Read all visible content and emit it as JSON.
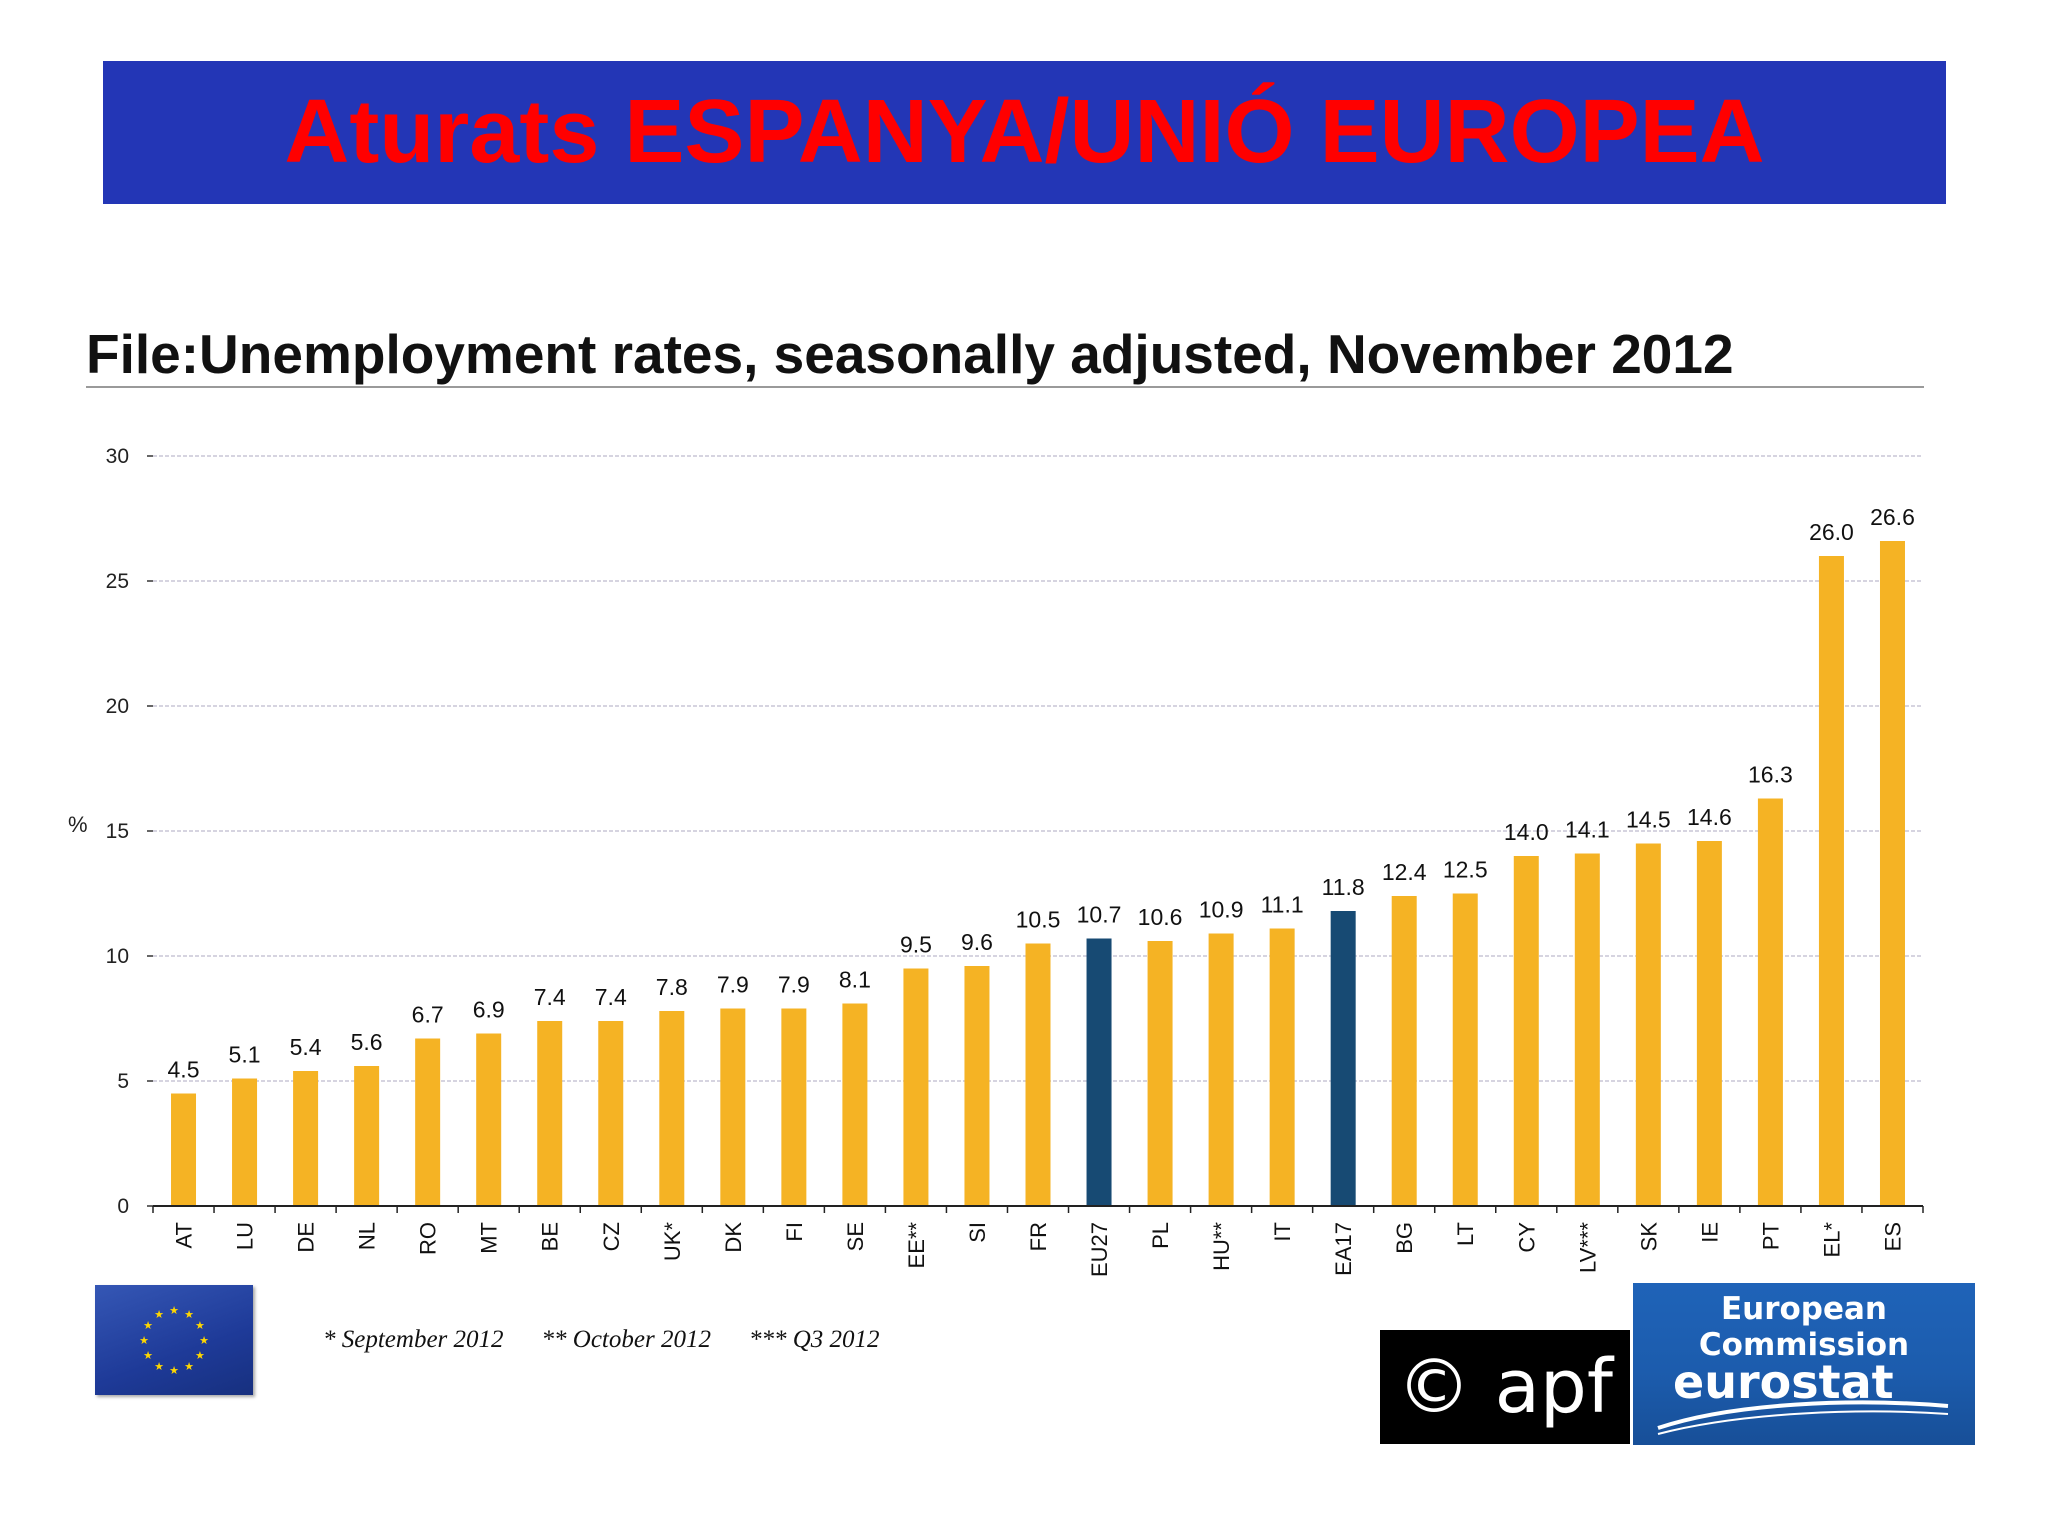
{
  "header": {
    "title": "Aturats ESPANYA/UNIÓ EUROPEA"
  },
  "colors": {
    "banner_bg": "#2336b6",
    "banner_text": "#ff0000",
    "bar_country": "#f5b324",
    "bar_aggregate": "#174a73"
  },
  "chart_data": {
    "type": "bar",
    "title": "File:Unemployment rates, seasonally adjusted, November 2012",
    "xlabel": "",
    "ylabel": "%",
    "ylim": [
      0,
      30
    ],
    "yticks": [
      0,
      5,
      10,
      15,
      20,
      25,
      30
    ],
    "grid": true,
    "categories": [
      "AT",
      "LU",
      "DE",
      "NL",
      "RO",
      "MT",
      "BE",
      "CZ",
      "UK*",
      "DK",
      "FI",
      "SE",
      "EE**",
      "SI",
      "FR",
      "EU27",
      "PL",
      "HU**",
      "IT",
      "EA17",
      "BG",
      "LT",
      "CY",
      "LV***",
      "SK",
      "IE",
      "PT",
      "EL*",
      "ES"
    ],
    "values": [
      4.5,
      5.1,
      5.4,
      5.6,
      6.7,
      6.9,
      7.4,
      7.4,
      7.8,
      7.9,
      7.9,
      8.1,
      9.5,
      9.6,
      10.5,
      10.7,
      10.6,
      10.9,
      11.1,
      11.8,
      12.4,
      12.5,
      14.0,
      14.1,
      14.5,
      14.6,
      16.3,
      26.0,
      26.6
    ],
    "value_labels": [
      "4.5",
      "5.1",
      "5.4",
      "5.6",
      "6.7",
      "6.9",
      "7.4",
      "7.4",
      "7.8",
      "7.9",
      "7.9",
      "8.1",
      "9.5",
      "9.6",
      "10.5",
      "10.7",
      "10.6",
      "10.9",
      "11.1",
      "11.8",
      "12.4",
      "12.5",
      "14.0",
      "14.1",
      "14.5",
      "14.6",
      "16.3",
      "26.0",
      "26.6"
    ],
    "highlighted": [
      "EU27",
      "EA17"
    ]
  },
  "footnotes": [
    "* September 2012",
    "** October 2012",
    "*** Q3 2012"
  ],
  "logos": {
    "apf": "© apf",
    "ec_top": "European Commission",
    "ec_main": "eurostat"
  }
}
